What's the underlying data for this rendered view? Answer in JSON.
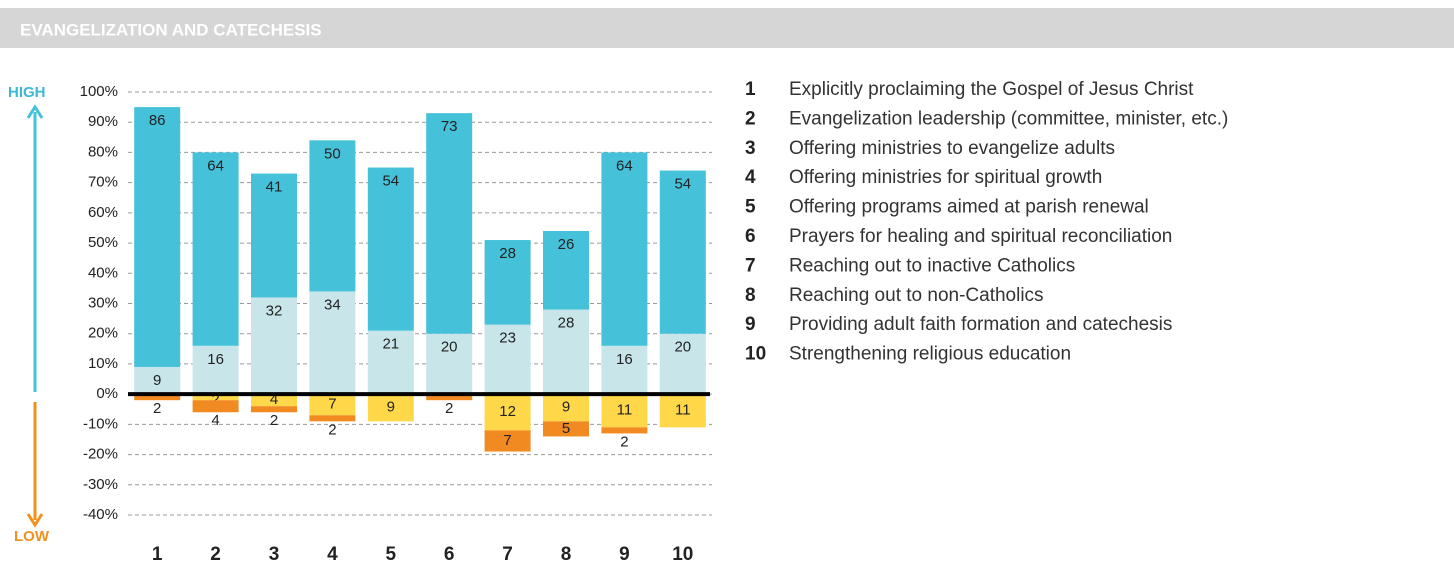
{
  "chart_data": {
    "type": "diverging_stacked_bar",
    "title": "EVANGELIZATION AND CATECHESIS",
    "high_label": "HIGH",
    "low_label": "LOW",
    "categories": [
      "1",
      "2",
      "3",
      "4",
      "5",
      "6",
      "7",
      "8",
      "9",
      "10"
    ],
    "series": [
      {
        "color": "#c8e6ea",
        "values": [
          9,
          16,
          32,
          34,
          21,
          20,
          23,
          28,
          16,
          20
        ]
      },
      {
        "color": "#45c1d9",
        "values": [
          86,
          64,
          41,
          50,
          54,
          73,
          28,
          26,
          64,
          54
        ]
      },
      {
        "color": "#ffd84a",
        "values": [
          null,
          -2,
          -4,
          -7,
          -9,
          null,
          -12,
          -9,
          -11,
          -11
        ],
        "value_labels": [
          null,
          "2",
          "4",
          "7",
          "9",
          null,
          "12",
          "9",
          "11",
          "11"
        ]
      },
      {
        "color": "#f28a22",
        "values": [
          -2,
          -4,
          -2,
          -2,
          null,
          -2,
          -7,
          -5,
          -2,
          null
        ],
        "value_labels": [
          "2",
          "4",
          "2",
          "2",
          null,
          "2",
          "7",
          "5",
          "2",
          null
        ]
      }
    ],
    "ylim": [
      -40,
      100
    ],
    "yticks": [
      {
        "value": 100,
        "label": "100%"
      },
      {
        "value": 90,
        "label": "90%"
      },
      {
        "value": 80,
        "label": "80%"
      },
      {
        "value": 70,
        "label": "70%"
      },
      {
        "value": 60,
        "label": "60%"
      },
      {
        "value": 50,
        "label": "50%"
      },
      {
        "value": 40,
        "label": "40%"
      },
      {
        "value": 30,
        "label": "30%"
      },
      {
        "value": 20,
        "label": "20%"
      },
      {
        "value": 10,
        "label": "10%"
      },
      {
        "value": 0,
        "label": "0%"
      },
      {
        "value": -10,
        "label": "-10%"
      },
      {
        "value": -20,
        "label": "-20%"
      },
      {
        "value": -30,
        "label": "-30%"
      },
      {
        "value": -40,
        "label": "-40%"
      }
    ],
    "grid": true,
    "legend_items": [
      "Explicitly proclaiming the Gospel of Jesus Christ",
      "Evangelization leadership (committee, minister, etc.)",
      "Offering ministries to evangelize adults",
      "Offering ministries for spiritual growth",
      "Offering programs aimed at parish renewal",
      "Prayers for healing and spiritual reconciliation",
      "Reaching out to inactive Catholics",
      "Reaching out to non-Catholics",
      "Providing adult faith formation and catechesis",
      "Strengthening religious education"
    ]
  }
}
